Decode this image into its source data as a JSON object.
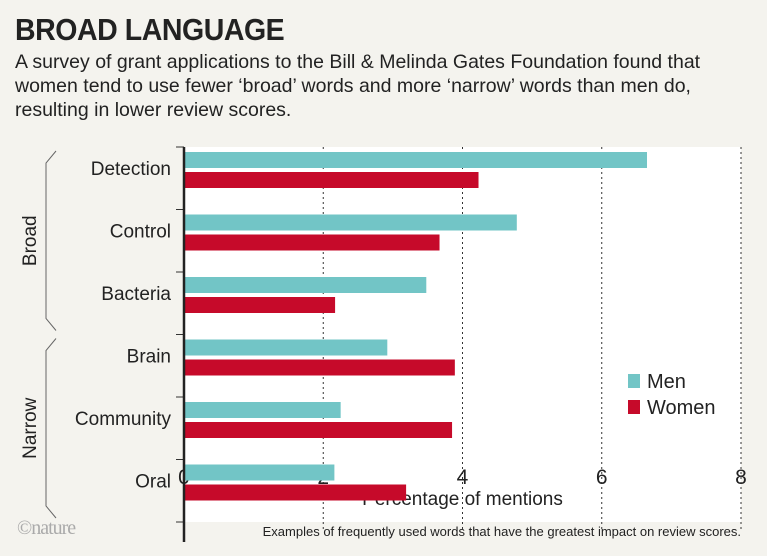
{
  "header": {
    "title": "BROAD LANGUAGE",
    "subtitle": "A survey of grant applications to the Bill & Melinda Gates Foundation found that women tend to use fewer ‘broad’ words and more ‘narrow’ words than men do, resulting in lower review scores."
  },
  "footer": {
    "note": "Examples of frequently used words that have the greatest impact on review scores.",
    "logo": "©nature"
  },
  "chart_data": {
    "type": "bar",
    "orientation": "horizontal",
    "categories": [
      "Detection",
      "Control",
      "Bacteria",
      "Brain",
      "Community",
      "Oral"
    ],
    "groups": [
      {
        "label": "Broad",
        "categories": [
          "Detection",
          "Control",
          "Bacteria"
        ]
      },
      {
        "label": "Narrow",
        "categories": [
          "Brain",
          "Community",
          "Oral"
        ]
      }
    ],
    "series": [
      {
        "name": "Men",
        "color": "#72c5c6",
        "values": [
          6.65,
          4.78,
          3.48,
          2.92,
          2.25,
          2.16
        ]
      },
      {
        "name": "Women",
        "color": "#c60a2a",
        "values": [
          4.23,
          3.67,
          2.17,
          3.89,
          3.85,
          3.19
        ]
      }
    ],
    "xlabel": "Percentage of mentions",
    "xlim": [
      0,
      8
    ],
    "xticks": [
      0,
      2,
      4,
      6,
      8
    ],
    "grid": "vertical dotted",
    "legend": "bottom-right"
  }
}
